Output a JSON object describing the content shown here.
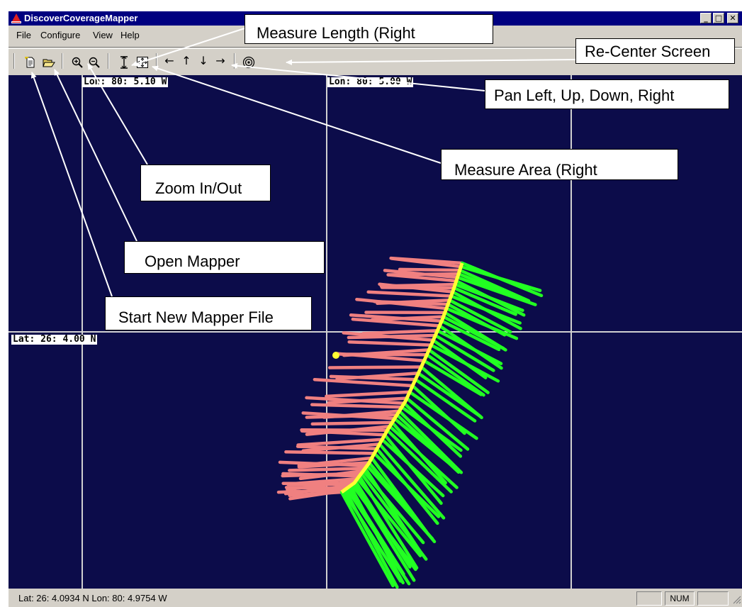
{
  "window": {
    "title": "DiscoverCoverageMapper"
  },
  "caption_buttons": {
    "minimize": "_",
    "maximize": "□",
    "close": "✕"
  },
  "menu": [
    "File",
    "Configure",
    "View",
    "Help"
  ],
  "toolbar": {
    "icons": [
      "new-file-icon",
      "open-folder-icon",
      "zoom-in-icon",
      "zoom-out-icon",
      "measure-length-icon",
      "measure-area-icon",
      "arrow-left-icon",
      "arrow-up-icon",
      "arrow-down-icon",
      "arrow-right-icon",
      "recenter-icon"
    ],
    "arrows": {
      "left": "←",
      "up": "↑",
      "down": "↓",
      "right": "→"
    }
  },
  "map": {
    "lon_label_1": "Lon: 80: 5.10 W",
    "lon_label_2": "Lon: 80: 5.00 W",
    "lat_label": "Lat: 26: 4.00 N",
    "colors": {
      "background": "#0c0c4a",
      "grid": "#d0d0d0",
      "coverage_port": "#f08080",
      "coverage_starboard": "#22ff22",
      "track": "#ffff33"
    }
  },
  "status": {
    "coords": "Lat: 26: 4.0934 N   Lon: 80: 4.9754 W",
    "num": "NUM"
  },
  "callouts": {
    "measure_length": "Measure     Length     (Right",
    "recenter": "Re-Center Screen",
    "pan": "Pan Left, Up, Down, Right",
    "measure_area": "Measure       Area      (Right",
    "zoom": "Zoom In/Out",
    "open": "Open     Mapper",
    "new_file": "Start New Mapper File"
  }
}
